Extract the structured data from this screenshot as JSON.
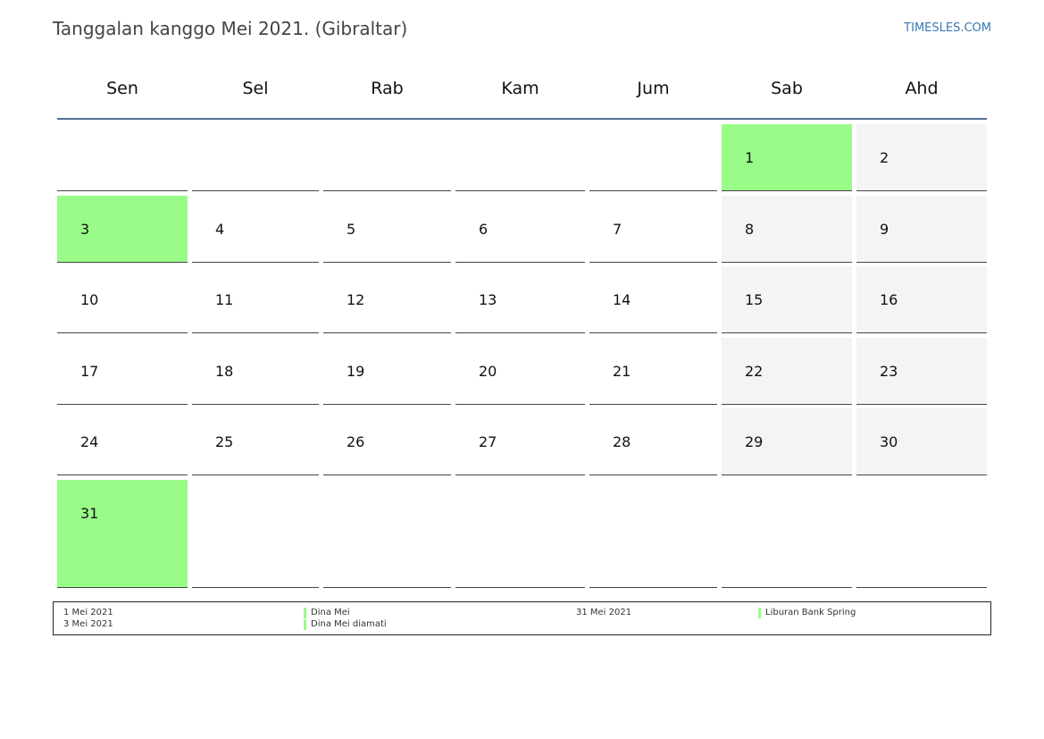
{
  "title": "Tanggalan kanggo Mei 2021. (Gibraltar)",
  "site": "TIMESLES.COM",
  "colors": {
    "holiday": "#99fc88",
    "weekend": "#f4f4f4",
    "header_rule": "#557095",
    "site_link": "#3a78b5"
  },
  "weekdays": [
    "Sen",
    "Sel",
    "Rab",
    "Kam",
    "Jum",
    "Sab",
    "Ahd"
  ],
  "weeks": [
    [
      "",
      "",
      "",
      "",
      "",
      "1",
      "2"
    ],
    [
      "3",
      "4",
      "5",
      "6",
      "7",
      "8",
      "9"
    ],
    [
      "10",
      "11",
      "12",
      "13",
      "14",
      "15",
      "16"
    ],
    [
      "17",
      "18",
      "19",
      "20",
      "21",
      "22",
      "23"
    ],
    [
      "24",
      "25",
      "26",
      "27",
      "28",
      "29",
      "30"
    ],
    [
      "31",
      "",
      "",
      "",
      "",
      "",
      ""
    ]
  ],
  "holiday_days": [
    "1",
    "3",
    "31"
  ],
  "legend": {
    "dates_left": [
      "1 Mei 2021",
      "3 Mei 2021"
    ],
    "names_left": [
      "Dina Mei",
      "Dina Mei diamati"
    ],
    "dates_right": [
      "31 Mei 2021"
    ],
    "names_right": [
      "Liburan Bank Spring"
    ]
  }
}
